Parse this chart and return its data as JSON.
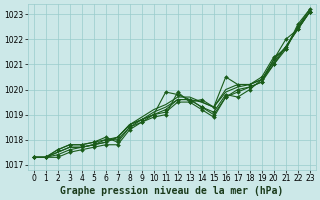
{
  "title": "Graphe pression niveau de la mer (hPa)",
  "bg_color": "#cce8e8",
  "grid_color": "#99cccc",
  "line_color": "#1a5c1a",
  "marker_color": "#1a5c1a",
  "xlim": [
    -0.5,
    23.5
  ],
  "ylim": [
    1016.8,
    1023.4
  ],
  "yticks": [
    1017,
    1018,
    1019,
    1020,
    1021,
    1022,
    1023
  ],
  "xticks": [
    0,
    1,
    2,
    3,
    4,
    5,
    6,
    7,
    8,
    9,
    10,
    11,
    12,
    13,
    14,
    15,
    16,
    17,
    18,
    19,
    20,
    21,
    22,
    23
  ],
  "series": [
    {
      "y": [
        1017.3,
        1017.3,
        1017.5,
        1017.7,
        1017.7,
        1017.8,
        1017.9,
        1018.1,
        1018.6,
        1018.8,
        1019.1,
        1019.3,
        1019.6,
        1019.6,
        1019.5,
        1019.3,
        1019.9,
        1020.1,
        1020.2,
        1020.4,
        1021.1,
        1021.7,
        1022.4,
        1023.1
      ],
      "marker": false,
      "lw": 0.8
    },
    {
      "y": [
        1017.3,
        1017.3,
        1017.5,
        1017.7,
        1017.7,
        1017.8,
        1018.0,
        1018.1,
        1018.6,
        1018.9,
        1019.2,
        1019.4,
        1019.7,
        1019.7,
        1019.5,
        1019.3,
        1020.0,
        1020.2,
        1020.2,
        1020.4,
        1021.2,
        1021.7,
        1022.5,
        1023.2
      ],
      "marker": false,
      "lw": 0.8
    },
    {
      "y": [
        1017.3,
        1017.3,
        1017.6,
        1017.8,
        1017.8,
        1017.9,
        1018.1,
        1017.9,
        1018.5,
        1018.8,
        1019.0,
        1019.2,
        1019.6,
        1019.6,
        1019.3,
        1019.0,
        1019.7,
        1020.0,
        1020.1,
        1020.3,
        1021.0,
        1021.7,
        1022.4,
        1023.1
      ],
      "marker": true,
      "lw": 0.8
    },
    {
      "y": [
        1017.3,
        1017.3,
        1017.6,
        1017.8,
        1017.8,
        1017.9,
        1018.0,
        1018.0,
        1018.5,
        1018.7,
        1019.0,
        1019.1,
        1019.5,
        1019.5,
        1019.2,
        1018.9,
        1019.7,
        1019.9,
        1020.1,
        1020.3,
        1021.2,
        1022.0,
        1022.4,
        1023.1
      ],
      "marker": true,
      "lw": 0.8
    },
    {
      "y": [
        1017.3,
        1017.3,
        1017.4,
        1017.6,
        1017.7,
        1017.8,
        1017.9,
        1018.1,
        1018.6,
        1018.8,
        1019.0,
        1019.9,
        1019.8,
        1019.6,
        1019.3,
        1019.1,
        1019.8,
        1019.7,
        1020.0,
        1020.4,
        1021.0,
        1021.6,
        1022.5,
        1023.1
      ],
      "marker": true,
      "lw": 0.8
    },
    {
      "y": [
        1017.3,
        1017.3,
        1017.3,
        1017.5,
        1017.6,
        1017.7,
        1017.8,
        1017.8,
        1018.4,
        1018.7,
        1018.9,
        1019.0,
        1019.9,
        1019.5,
        1019.6,
        1019.3,
        1020.5,
        1020.2,
        1020.2,
        1020.5,
        1021.3,
        1021.6,
        1022.6,
        1023.2
      ],
      "marker": true,
      "lw": 0.8
    }
  ],
  "tick_fontsize": 5.5,
  "title_fontsize": 7.0
}
